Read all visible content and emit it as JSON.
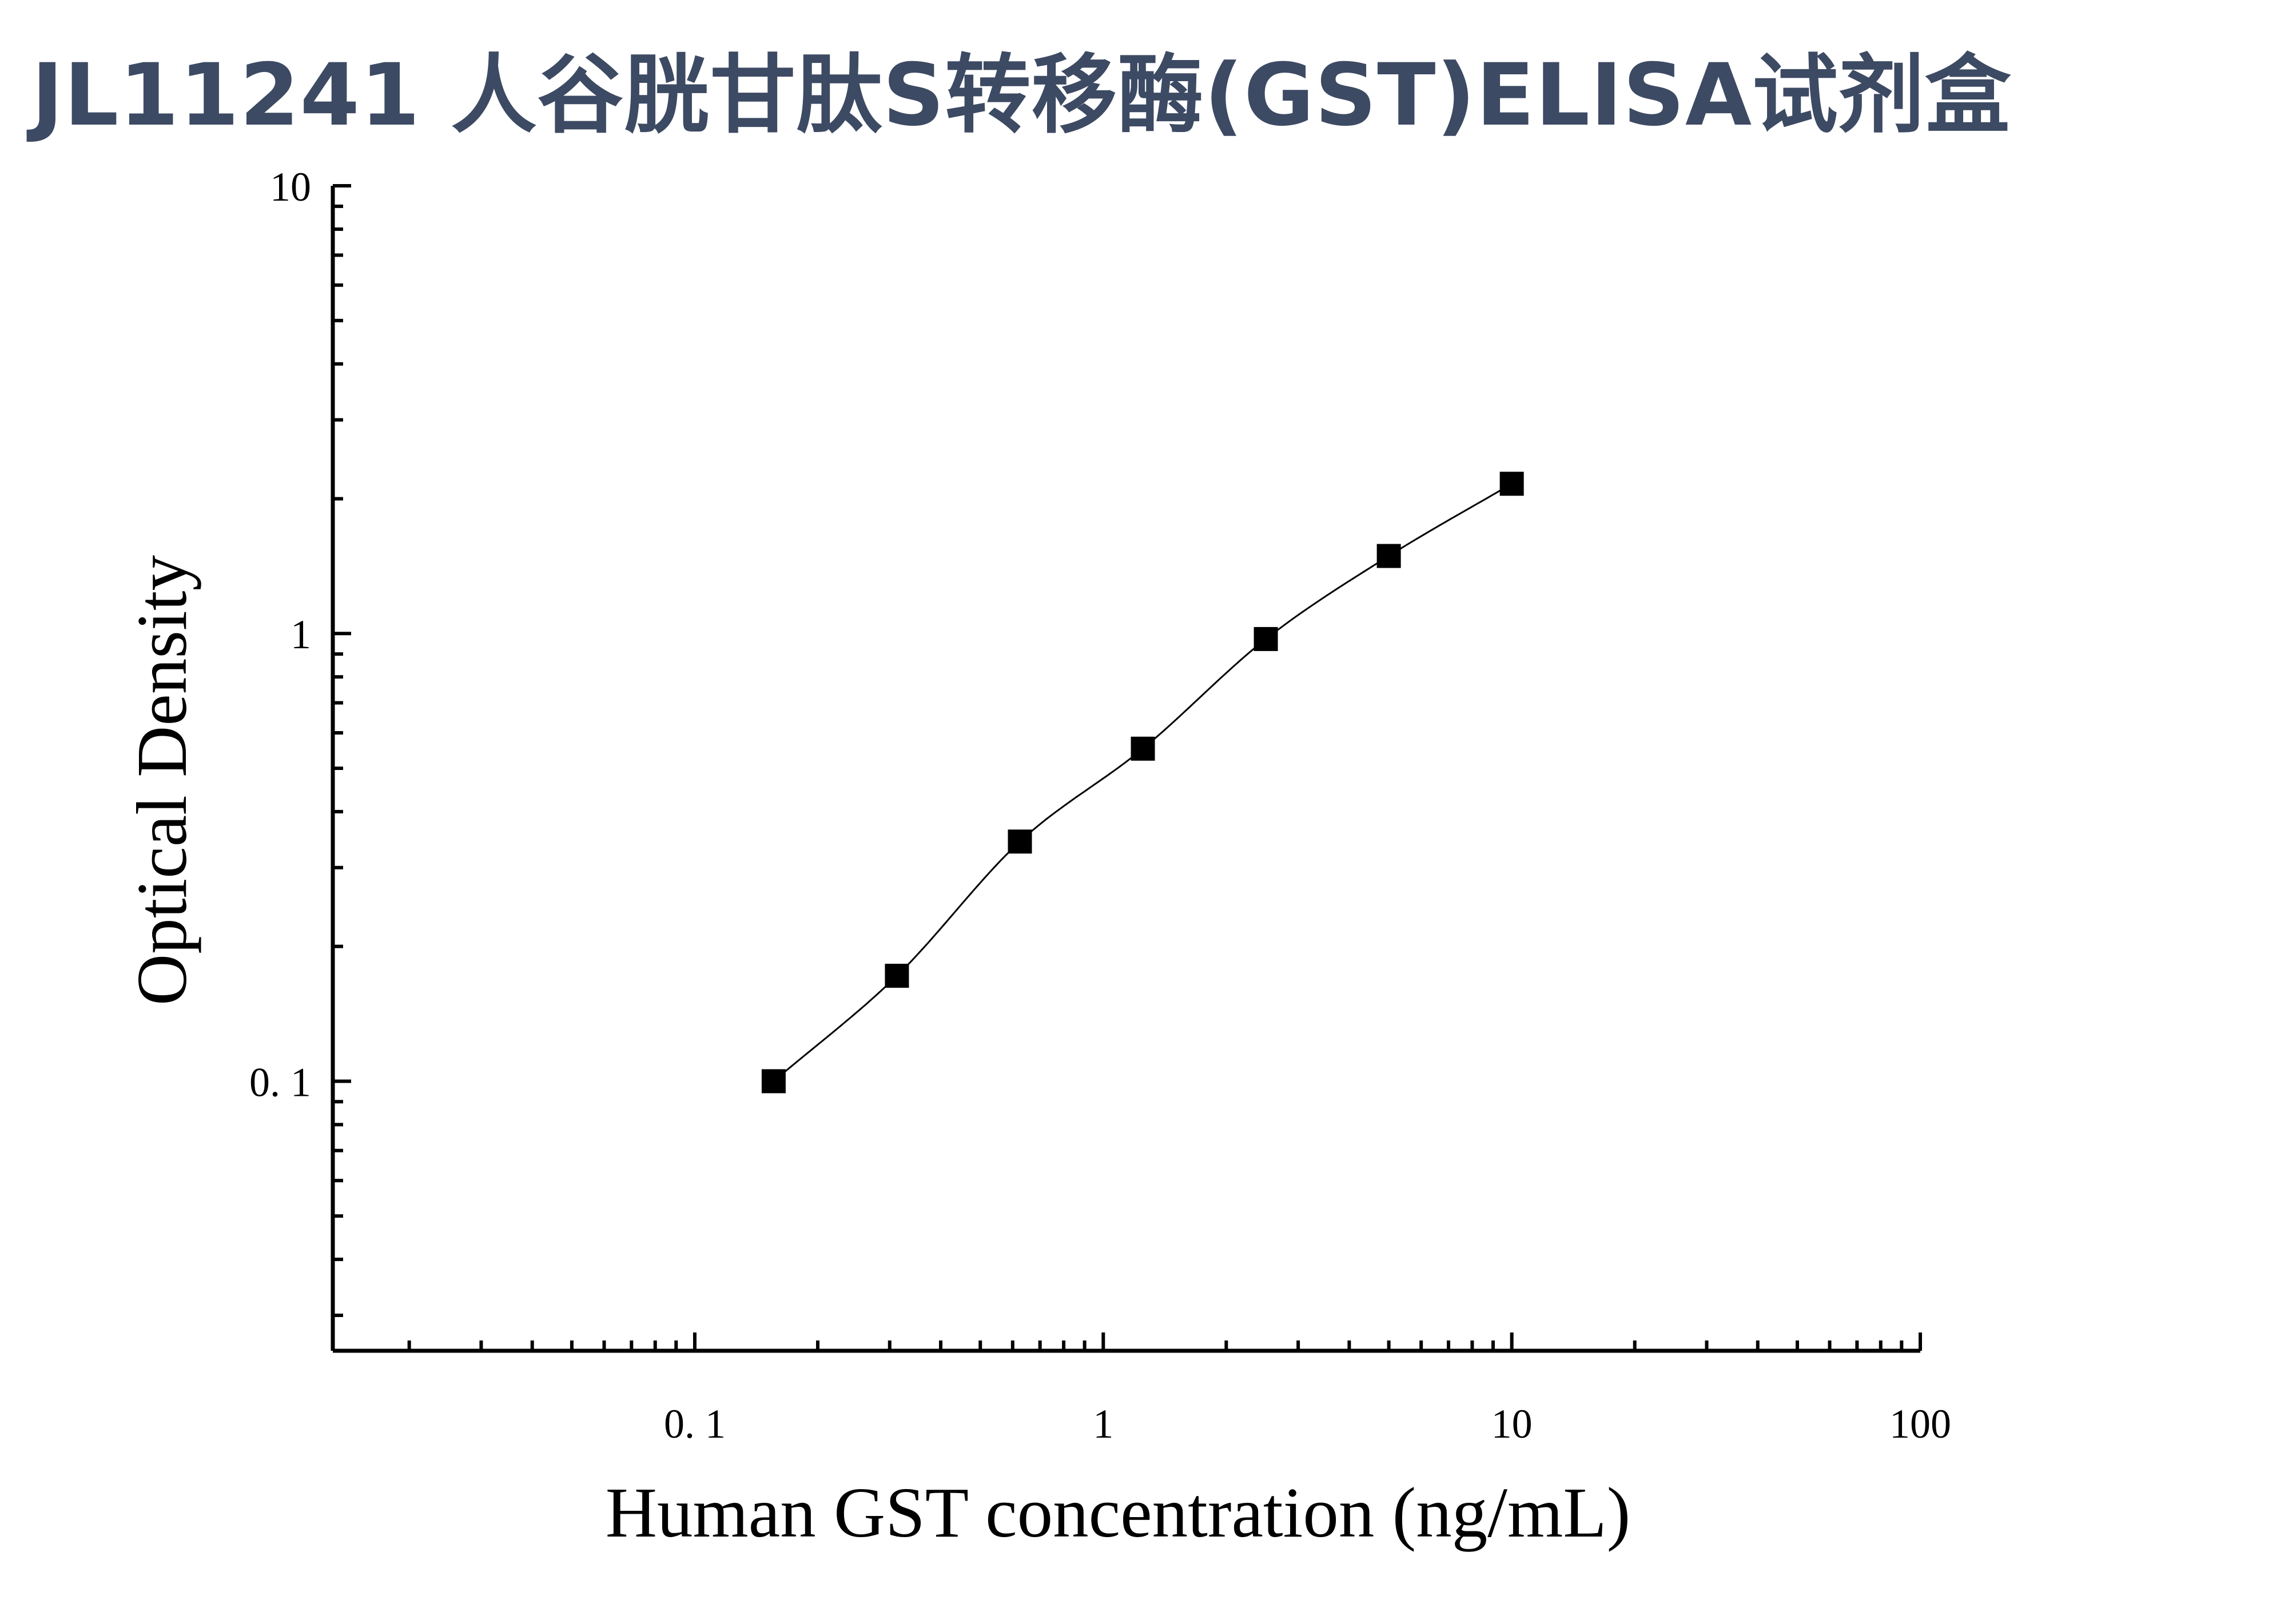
{
  "title": "JL11241 人谷胱甘肽S转移酶(GST)ELISA试剂盒",
  "chart_data": {
    "type": "scatter",
    "title": "JL11241 人谷胱甘肽S转移酶(GST)ELISA试剂盒",
    "xlabel": "Human GST concentration (ng/mL)",
    "ylabel": "Optical Density",
    "xscale": "log",
    "yscale": "log",
    "xlim": [
      0.013,
      100
    ],
    "ylim": [
      0.025,
      10
    ],
    "x_tick_labels": [
      {
        "value": 0.1,
        "label": "0. 1"
      },
      {
        "value": 1,
        "label": "1"
      },
      {
        "value": 10,
        "label": "10"
      },
      {
        "value": 100,
        "label": "100"
      }
    ],
    "y_tick_labels": [
      {
        "value": 0.1,
        "label": "0. 1"
      },
      {
        "value": 1,
        "label": "1"
      },
      {
        "value": 10,
        "label": "10"
      }
    ],
    "grid": false,
    "series": [
      {
        "marker": "square",
        "line": "smooth",
        "color": "#000000",
        "x": [
          0.156,
          0.3125,
          0.625,
          1.25,
          2.5,
          5,
          10
        ],
        "y": [
          0.1,
          0.172,
          0.343,
          0.553,
          0.972,
          1.49,
          2.16
        ]
      }
    ]
  }
}
